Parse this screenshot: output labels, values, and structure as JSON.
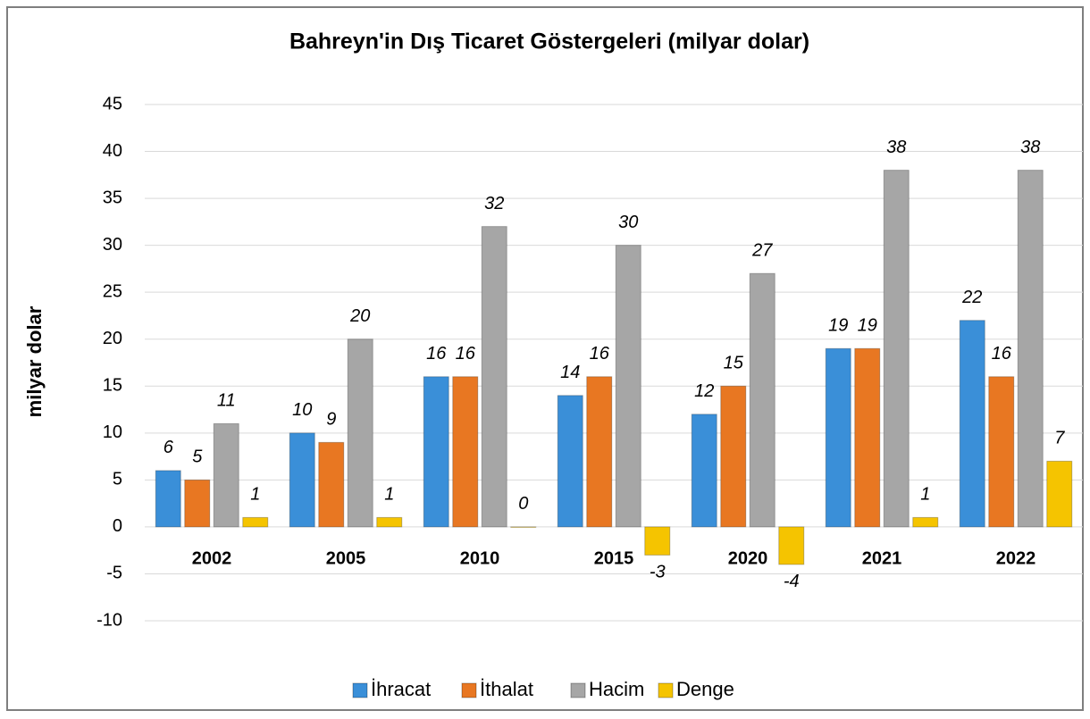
{
  "chart_data": {
    "type": "bar",
    "title": "Bahreyn'in Dış Ticaret Göstergeleri  (milyar dolar)",
    "y_label": "milyar dolar",
    "categories": [
      "2002",
      "2005",
      "2010",
      "2015",
      "2020",
      "2021",
      "2022"
    ],
    "series": [
      {
        "name": "İhracat",
        "color": "#3a8fd8",
        "values": [
          6,
          10,
          16,
          14,
          12,
          19,
          22
        ]
      },
      {
        "name": "İthalat",
        "color": "#e87722",
        "values": [
          5,
          9,
          16,
          16,
          15,
          19,
          16
        ]
      },
      {
        "name": "Hacim",
        "color": "#a6a6a6",
        "values": [
          11,
          20,
          32,
          30,
          27,
          38,
          38
        ]
      },
      {
        "name": "Denge",
        "color": "#f5c400",
        "values": [
          1,
          1,
          0,
          -3,
          -4,
          1,
          7
        ]
      }
    ],
    "ylim": [
      -10,
      45
    ],
    "yticks": [
      -10,
      -5,
      0,
      5,
      10,
      15,
      20,
      25,
      30,
      35,
      40,
      45
    ],
    "grid": true,
    "legend": "bottom"
  }
}
